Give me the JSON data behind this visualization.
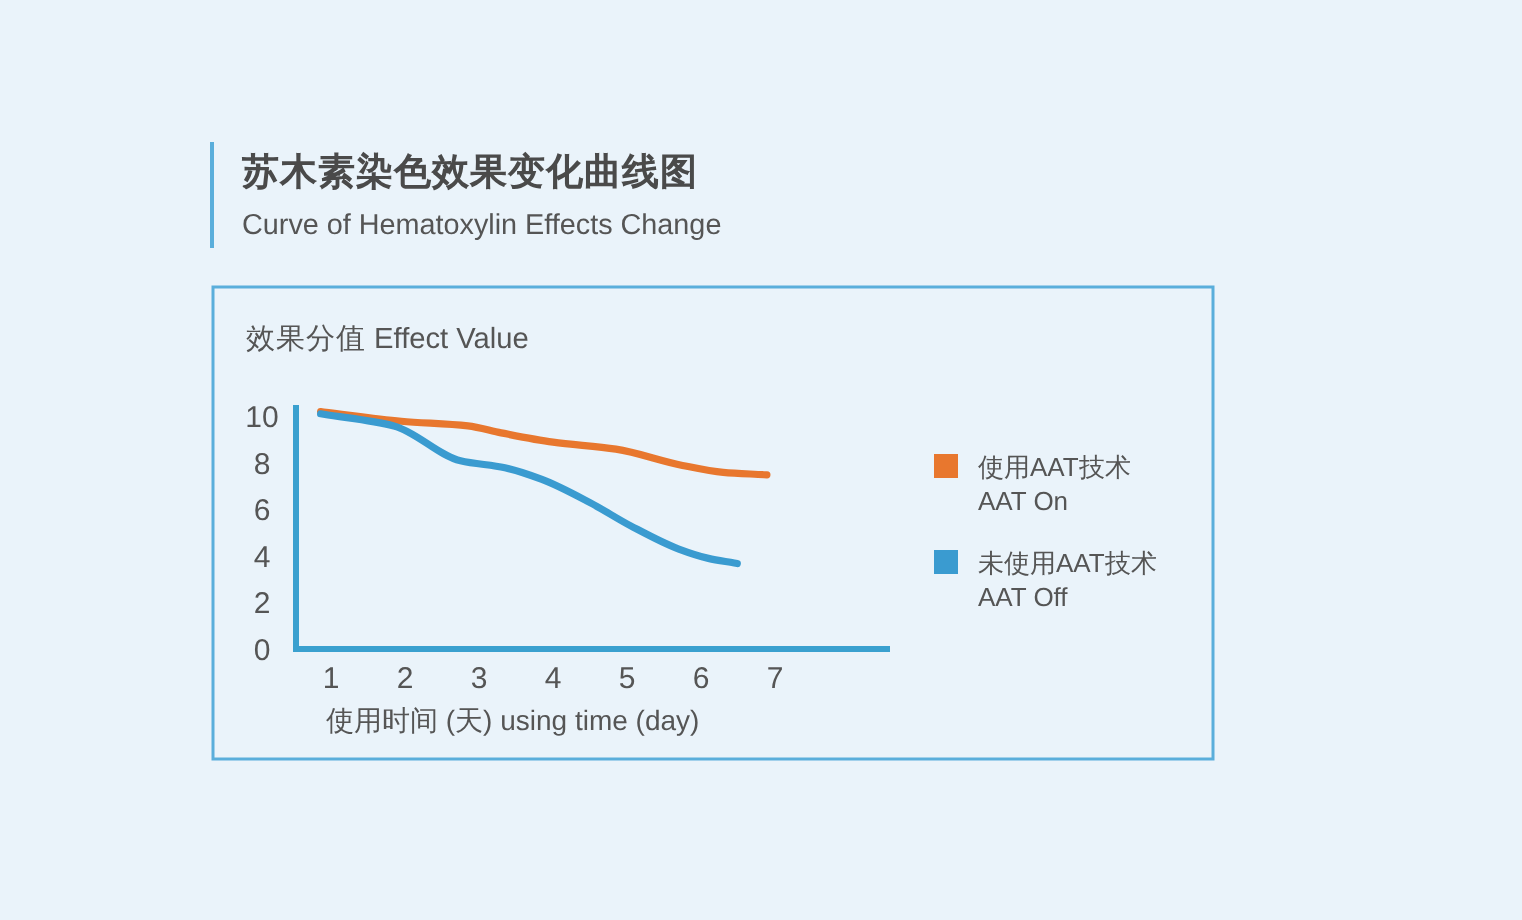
{
  "chart_data": {
    "type": "line",
    "title": "苏木素染色效果变化曲线图",
    "subtitle": "Curve of Hematoxylin Effects Change",
    "ylabel": "效果分值 Effect Value",
    "xlabel": "使用时间 (天) using time (day)",
    "xlim": [
      0.5,
      8.5
    ],
    "xticks": [
      1,
      2,
      3,
      4,
      5,
      6,
      7
    ],
    "ylim": [
      0,
      10.5
    ],
    "yticks": [
      0,
      2,
      4,
      6,
      8,
      10
    ],
    "legend": "right",
    "series": [
      {
        "name": "使用AAT技术\nAAT On",
        "color": "#e8772e",
        "x": [
          0.9,
          1.95,
          2.85,
          3.3,
          4.0,
          4.85,
          5.75,
          6.3,
          6.85
        ],
        "values": [
          10.2,
          9.8,
          9.6,
          9.3,
          8.9,
          8.6,
          7.9,
          7.6,
          7.5
        ]
      },
      {
        "name": "未使用AAT技术\nAAT Off",
        "color": "#3a9bd0",
        "x": [
          0.9,
          1.85,
          2.75,
          3.35,
          3.85,
          4.5,
          5.05,
          5.7,
          6.1,
          6.45
        ],
        "values": [
          10.1,
          9.6,
          8.1,
          7.8,
          7.3,
          6.3,
          5.3,
          4.3,
          3.9,
          3.7
        ]
      }
    ]
  }
}
